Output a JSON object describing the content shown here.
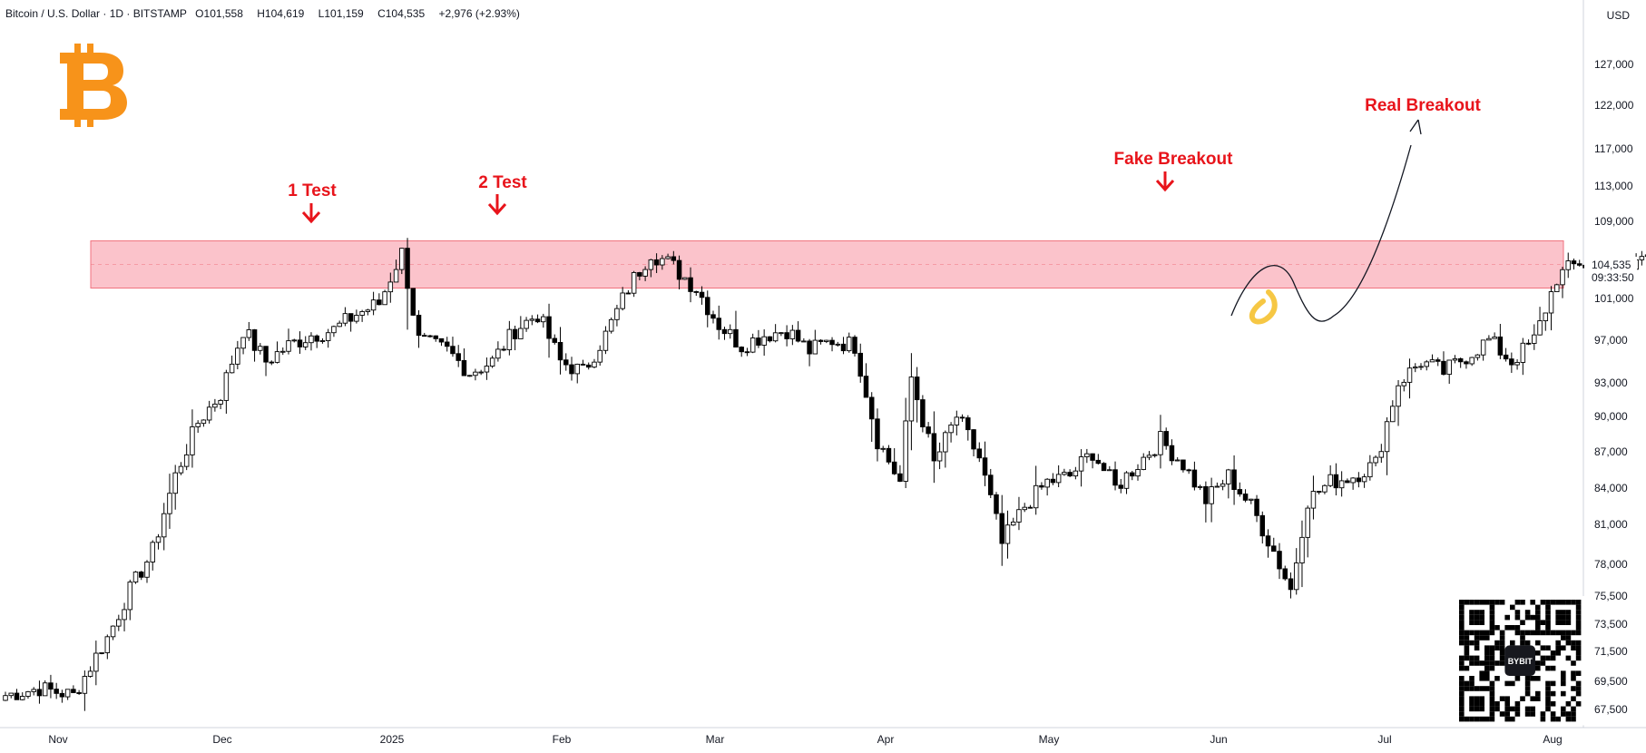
{
  "header": {
    "symbol": "Bitcoin / U.S. Dollar · 1D · BITSTAMP",
    "open_label": "O",
    "open": "101,558",
    "high_label": "H",
    "high": "104,619",
    "low_label": "L",
    "low": "101,159",
    "close_label": "C",
    "close": "104,535",
    "change": "+2,976 (+2.93%)"
  },
  "currency": "USD",
  "price_label": {
    "price": "104,535",
    "countdown": "09:33:50"
  },
  "colors": {
    "resistance_zone": "#fbc3cb",
    "annotation": "#e8141b",
    "logo": "#f7931a",
    "candle": "#000000"
  },
  "icons": [
    "bitcoin-logo",
    "bybit-qr-code"
  ],
  "chart_data": {
    "type": "candlestick",
    "y_ticks": [
      67500,
      69500,
      71500,
      73500,
      75500,
      78000,
      81000,
      84000,
      87000,
      90000,
      93000,
      97000,
      101000,
      105000,
      109000,
      113000,
      117000,
      122000,
      127000
    ],
    "y_tick_labels": [
      "67,500",
      "69,500",
      "71,500",
      "73,500",
      "75,500",
      "78,000",
      "81,000",
      "84,000",
      "87,000",
      "90,000",
      "93,000",
      "97,000",
      "101,000",
      "105,000",
      "109,000",
      "113,000",
      "117,000",
      "122,000",
      "127,000"
    ],
    "x_ticks": [
      "Nov",
      "Dec",
      "2025",
      "Feb",
      "Mar",
      "Apr",
      "May",
      "Jun",
      "Jul",
      "Aug"
    ],
    "resistance_zone": [
      102000,
      106800
    ],
    "current_price": 104535,
    "annotations": [
      {
        "text": "1 Test",
        "price": 109000
      },
      {
        "text": "2 Test",
        "price": 110000
      },
      {
        "text": "Fake Breakout",
        "price": 112200
      },
      {
        "text": "Real Breakout",
        "price": 121000
      }
    ],
    "price_path_keys": [
      [
        0,
        68500
      ],
      [
        6,
        69000
      ],
      [
        12,
        68500
      ],
      [
        18,
        72500
      ],
      [
        22,
        76000
      ],
      [
        26,
        79000
      ],
      [
        30,
        85000
      ],
      [
        34,
        89500
      ],
      [
        38,
        92000
      ],
      [
        42,
        98000
      ],
      [
        46,
        95000
      ],
      [
        50,
        96500
      ],
      [
        54,
        97500
      ],
      [
        58,
        98000
      ],
      [
        62,
        99500
      ],
      [
        66,
        100500
      ],
      [
        70,
        105500
      ],
      [
        73,
        97000
      ],
      [
        78,
        96000
      ],
      [
        82,
        94000
      ],
      [
        86,
        95000
      ],
      [
        90,
        98000
      ],
      [
        94,
        99500
      ],
      [
        98,
        95000
      ],
      [
        102,
        94000
      ],
      [
        106,
        97500
      ],
      [
        110,
        102000
      ],
      [
        114,
        105500
      ],
      [
        118,
        104000
      ],
      [
        122,
        102000
      ],
      [
        126,
        98500
      ],
      [
        130,
        96500
      ],
      [
        134,
        97500
      ],
      [
        138,
        98000
      ],
      [
        142,
        96000
      ],
      [
        146,
        97000
      ],
      [
        150,
        96500
      ],
      [
        154,
        88000
      ],
      [
        158,
        84500
      ],
      [
        160,
        93500
      ],
      [
        164,
        86000
      ],
      [
        168,
        90000
      ],
      [
        172,
        86500
      ],
      [
        176,
        79500
      ],
      [
        180,
        82500
      ],
      [
        184,
        84500
      ],
      [
        188,
        85000
      ],
      [
        192,
        87000
      ],
      [
        196,
        84000
      ],
      [
        200,
        86000
      ],
      [
        204,
        88000
      ],
      [
        208,
        86000
      ],
      [
        212,
        83000
      ],
      [
        216,
        85000
      ],
      [
        220,
        82500
      ],
      [
        224,
        79000
      ],
      [
        227,
        76000
      ],
      [
        230,
        83000
      ],
      [
        234,
        84500
      ],
      [
        238,
        85000
      ],
      [
        242,
        86000
      ],
      [
        246,
        93000
      ],
      [
        250,
        95000
      ],
      [
        254,
        94000
      ],
      [
        258,
        95500
      ],
      [
        262,
        97000
      ],
      [
        266,
        95000
      ],
      [
        270,
        97000
      ],
      [
        274,
        103000
      ],
      [
        278,
        104500
      ],
      [
        282,
        103500
      ],
      [
        286,
        103000
      ],
      [
        290,
        106000
      ],
      [
        294,
        109000
      ],
      [
        296,
        111500
      ],
      [
        299,
        107000
      ],
      [
        302,
        108000
      ],
      [
        306,
        107000
      ],
      [
        310,
        104500
      ],
      [
        314,
        104000
      ],
      [
        318,
        104500
      ],
      [
        321,
        101500
      ],
      [
        322,
        104535
      ]
    ]
  }
}
